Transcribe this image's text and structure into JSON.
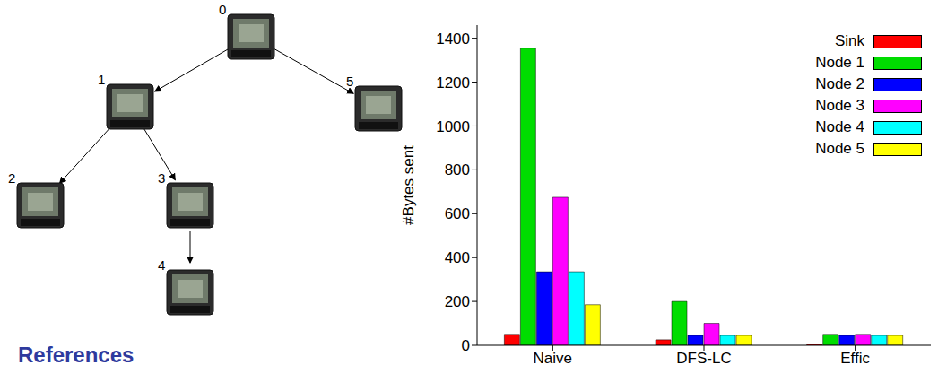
{
  "chart_data": {
    "type": "bar",
    "y_label": "#Bytes sent",
    "categories": [
      "Naive",
      "DFS-LC",
      "Effic"
    ],
    "series": [
      {
        "name": "Sink",
        "color": "#ff0000",
        "values": [
          50,
          25,
          5
        ]
      },
      {
        "name": "Node 1",
        "color": "#00dd00",
        "values": [
          1355,
          200,
          50
        ]
      },
      {
        "name": "Node 2",
        "color": "#0000ff",
        "values": [
          335,
          45,
          45
        ]
      },
      {
        "name": "Node 3",
        "color": "#ff00ff",
        "values": [
          675,
          100,
          50
        ]
      },
      {
        "name": "Node 4",
        "color": "#00ffff",
        "values": [
          335,
          45,
          45
        ]
      },
      {
        "name": "Node 5",
        "color": "#ffff00",
        "values": [
          185,
          45,
          45
        ]
      }
    ],
    "ylim": [
      0,
      1460
    ],
    "yticks": [
      0,
      200,
      400,
      600,
      800,
      1000,
      1200,
      1400
    ],
    "legend": "top-right",
    "grid": false
  },
  "diagram": {
    "nodes": [
      {
        "label": "0"
      },
      {
        "label": "1"
      },
      {
        "label": "2"
      },
      {
        "label": "3"
      },
      {
        "label": "4"
      },
      {
        "label": "5"
      }
    ],
    "edges": [
      [
        0,
        1
      ],
      [
        0,
        5
      ],
      [
        1,
        2
      ],
      [
        1,
        3
      ],
      [
        3,
        4
      ]
    ]
  },
  "footer": "References"
}
